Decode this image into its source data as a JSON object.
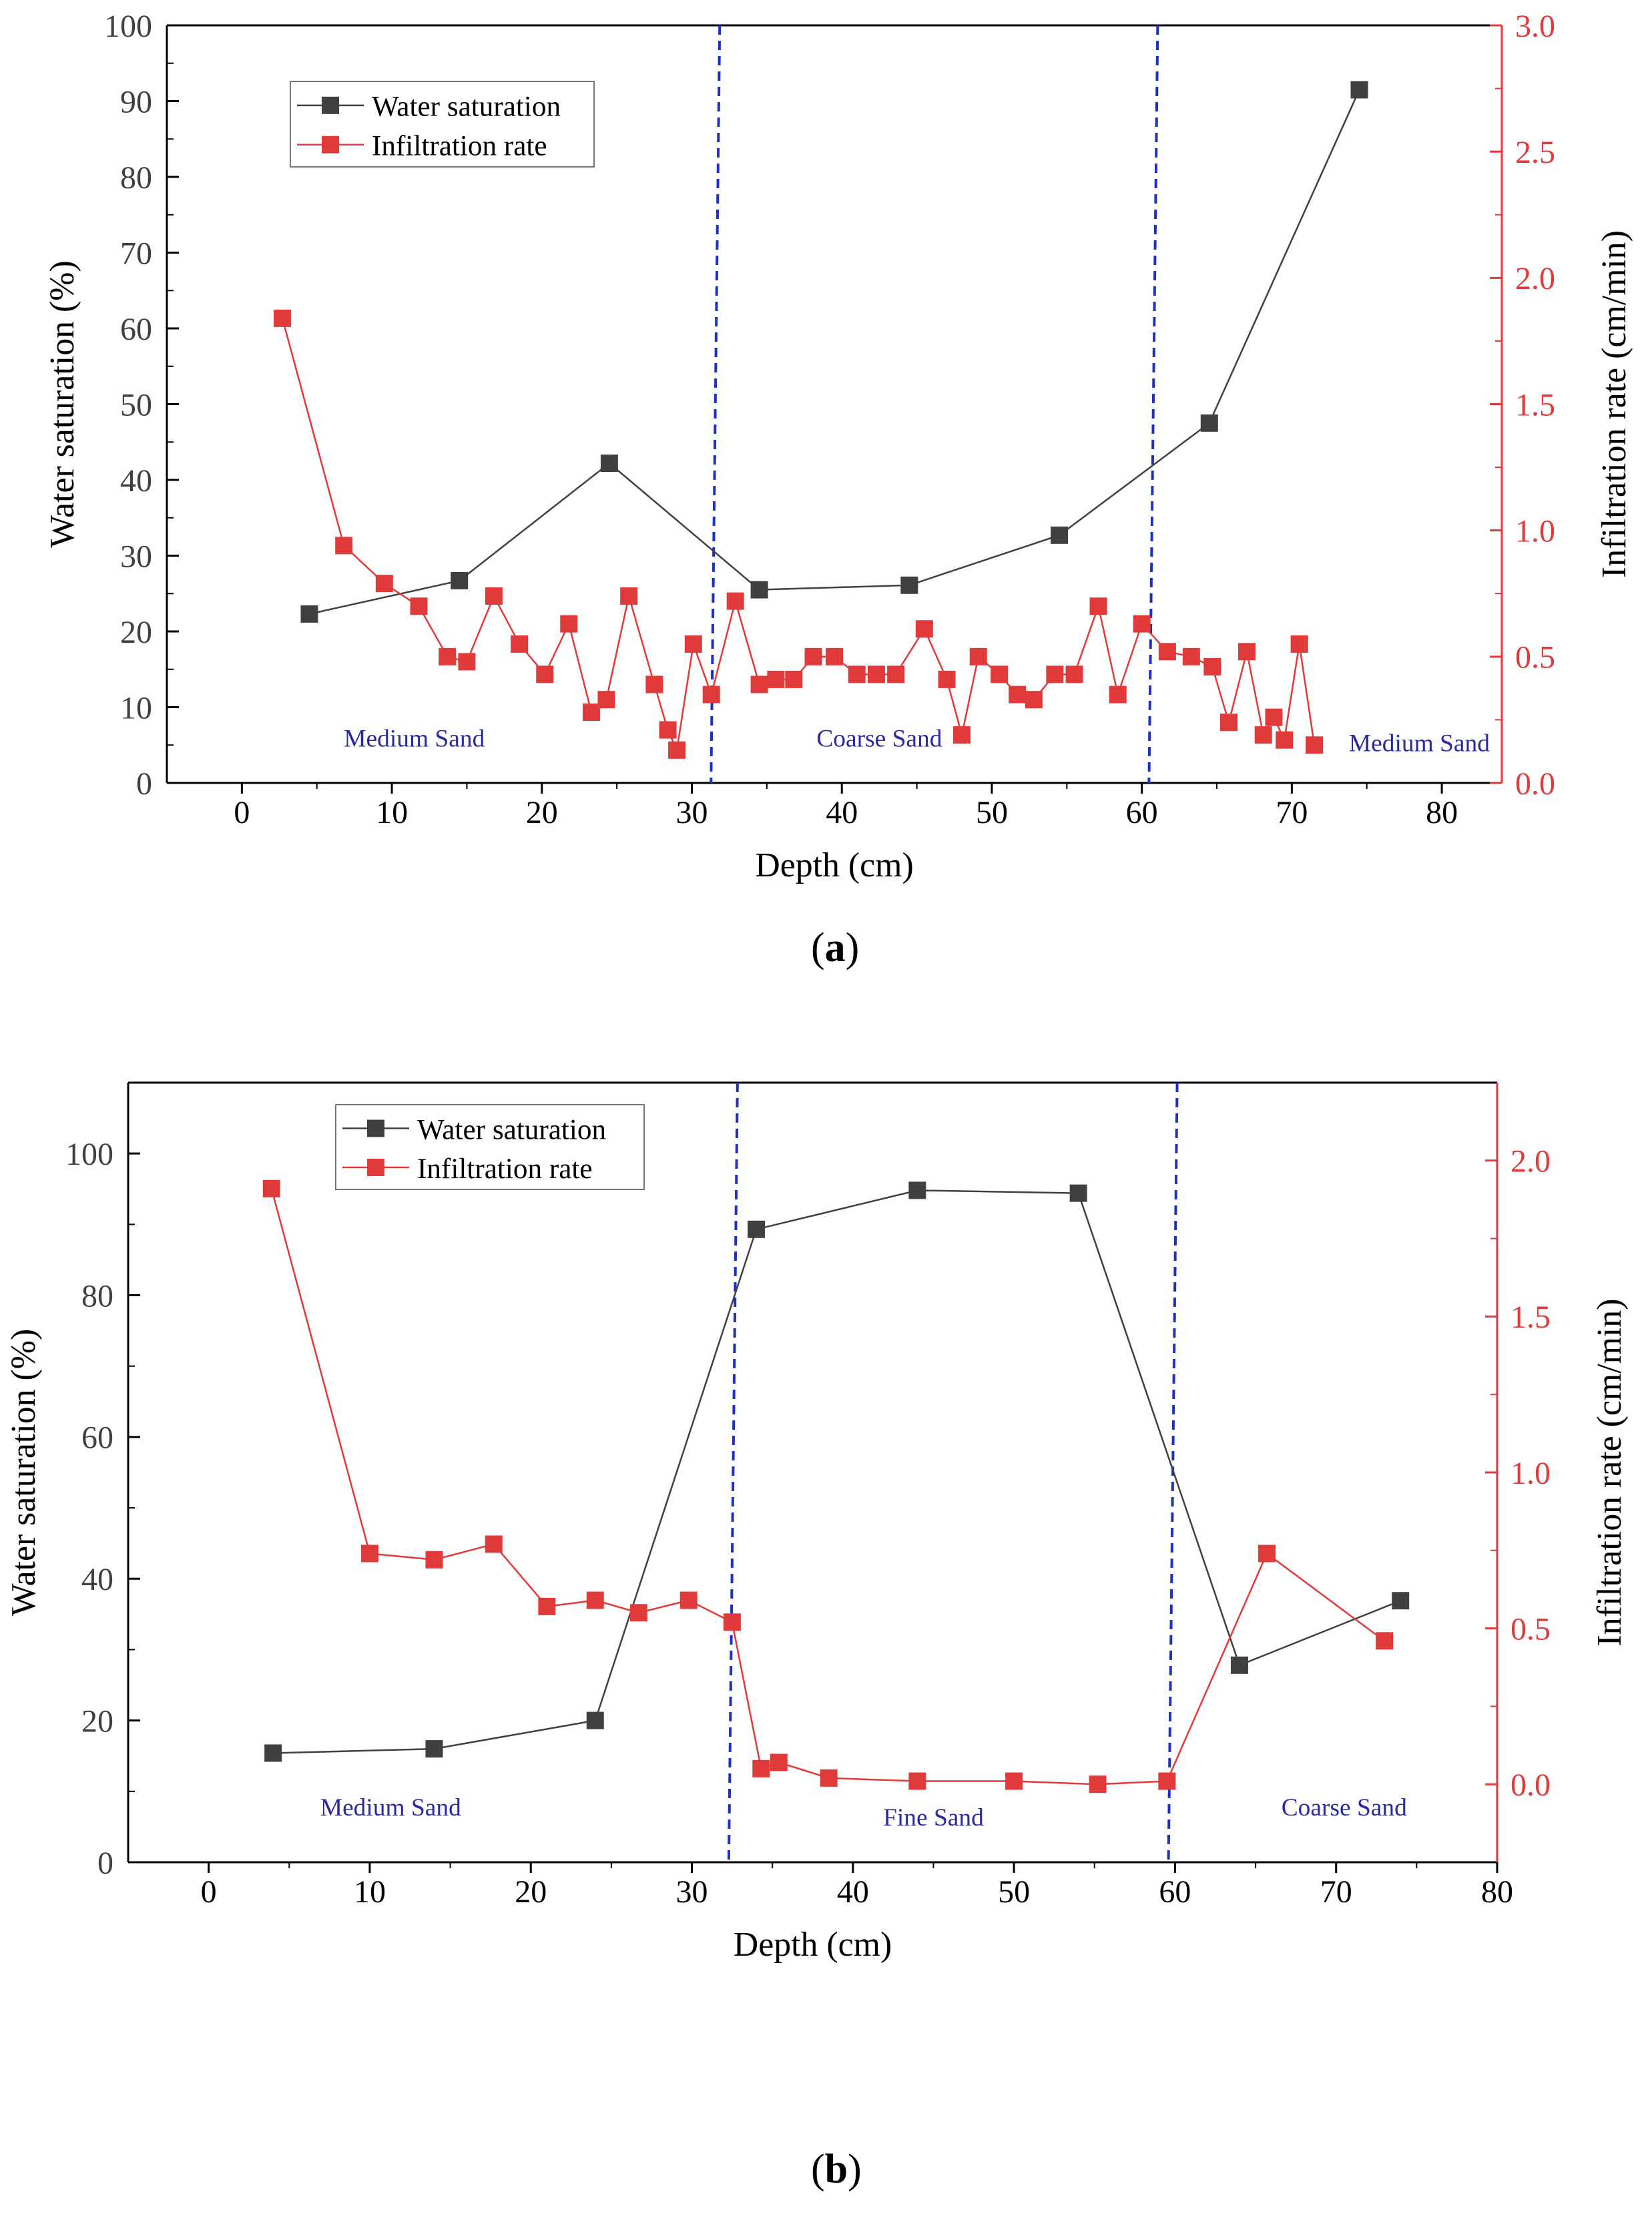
{
  "chart_data": [
    {
      "type": "line",
      "panel_label": "a",
      "xlabel": "Depth (cm)",
      "ylabel": "Water saturation (%)",
      "y2label": "Infiltration rate (cm/min)",
      "xlim": [
        -5,
        84
      ],
      "ylim": [
        0,
        100
      ],
      "y2lim": [
        0,
        3.0
      ],
      "xticks": [
        0,
        10,
        20,
        30,
        40,
        50,
        60,
        70,
        80
      ],
      "yticks": [
        0,
        10,
        20,
        30,
        40,
        50,
        60,
        70,
        80,
        90,
        100
      ],
      "y2ticks": [
        0.0,
        0.5,
        1.0,
        1.5,
        2.0,
        2.5,
        3.0
      ],
      "ytick_labels": [
        "0",
        "10",
        "20",
        "30",
        "40",
        "50",
        "60",
        "70",
        "80",
        "90",
        "100"
      ],
      "y2tick_labels": [
        "0.0",
        "0.5",
        "1.0",
        "1.5",
        "2.0",
        "2.5",
        "3.0"
      ],
      "xtick_labels": [
        "0",
        "10",
        "20",
        "30",
        "40",
        "50",
        "60",
        "70",
        "80"
      ],
      "boundaries": [
        31.5,
        60.7
      ],
      "zones": [
        {
          "label": "Medium Sand",
          "x": 11.5,
          "y": 4.8
        },
        {
          "label": "Coarse Sand",
          "x": 42.5,
          "y": 4.8
        },
        {
          "label": "Medium Sand",
          "x": 78.5,
          "y": 4.2
        }
      ],
      "legend": {
        "position": "top-left",
        "entries": [
          "Water saturation",
          "Infiltration rate"
        ]
      },
      "series": [
        {
          "name": "Water saturation",
          "axis": "left",
          "color": "#404040",
          "x": [
            4.5,
            14.5,
            24.5,
            34.5,
            44.5,
            54.5,
            64.5,
            74.5
          ],
          "y": [
            22.3,
            26.7,
            42.2,
            25.5,
            26.1,
            32.7,
            47.5,
            91.5
          ]
        },
        {
          "name": "Infiltration rate",
          "axis": "right",
          "color": "#e03a3a",
          "x": [
            2.7,
            6.8,
            9.5,
            11.8,
            13.7,
            15.0,
            16.8,
            18.5,
            20.2,
            21.8,
            23.3,
            24.3,
            25.8,
            27.5,
            28.4,
            29.0,
            30.1,
            31.3,
            32.9,
            34.5,
            35.6,
            36.8,
            38.1,
            39.5,
            41.0,
            42.3,
            43.6,
            45.5,
            47.0,
            48.0,
            49.1,
            50.5,
            51.7,
            52.8,
            54.2,
            55.5,
            57.1,
            58.4,
            60.0,
            61.7,
            63.3,
            64.7,
            65.8,
            67.0,
            68.1,
            68.8,
            69.5,
            70.5,
            71.5
          ],
          "y": [
            1.84,
            0.94,
            0.79,
            0.7,
            0.5,
            0.48,
            0.74,
            0.55,
            0.43,
            0.63,
            0.28,
            0.33,
            0.74,
            0.39,
            0.21,
            0.13,
            0.55,
            0.35,
            0.72,
            0.39,
            0.41,
            0.41,
            0.5,
            0.5,
            0.43,
            0.43,
            0.43,
            0.61,
            0.41,
            0.19,
            0.5,
            0.43,
            0.35,
            0.33,
            0.43,
            0.43,
            0.7,
            0.35,
            0.63,
            0.52,
            0.5,
            0.46,
            0.24,
            0.52,
            0.19,
            0.26,
            0.17,
            0.55,
            0.15
          ]
        }
      ]
    },
    {
      "type": "line",
      "panel_label": "b",
      "xlabel": "Depth (cm)",
      "ylabel": "Water saturation (%)",
      "y2label": "Infiltration rate (cm/min)",
      "xlim": [
        -5,
        80
      ],
      "ylim": [
        0,
        110
      ],
      "y2lim": [
        -0.25,
        2.25
      ],
      "xticks": [
        0,
        10,
        20,
        30,
        40,
        50,
        60,
        70,
        80
      ],
      "yticks": [
        0,
        20,
        40,
        60,
        80,
        100
      ],
      "y2ticks": [
        0.0,
        0.5,
        1.0,
        1.5,
        2.0
      ],
      "ytick_labels": [
        "0",
        "20",
        "40",
        "60",
        "80",
        "100"
      ],
      "y2tick_labels": [
        "0.0",
        "0.5",
        "1.0",
        "1.5",
        "2.0"
      ],
      "xtick_labels": [
        "0",
        "10",
        "20",
        "30",
        "40",
        "50",
        "60",
        "70",
        "80"
      ],
      "boundaries": [
        32.5,
        59.8
      ],
      "zones": [
        {
          "label": "Medium Sand",
          "x": 11.3,
          "y": 6.6
        },
        {
          "label": "Fine Sand",
          "x": 45.0,
          "y": 5.2
        },
        {
          "label": "Coarse Sand",
          "x": 70.5,
          "y": 6.6
        }
      ],
      "legend": {
        "position": "top-left",
        "entries": [
          "Water saturation",
          "Infiltration rate"
        ]
      },
      "series": [
        {
          "name": "Water saturation",
          "axis": "left",
          "color": "#404040",
          "x": [
            4,
            14,
            24,
            34,
            44,
            54,
            64,
            74
          ],
          "y": [
            15.4,
            16.0,
            20.0,
            89.3,
            94.8,
            94.4,
            27.8,
            36.9
          ]
        },
        {
          "name": "Infiltration rate",
          "axis": "right",
          "color": "#e03a3a",
          "x": [
            3.9,
            10.0,
            14.0,
            17.7,
            21.0,
            24.0,
            26.7,
            29.8,
            32.5,
            34.3,
            35.4,
            38.5,
            44.0,
            50.0,
            55.2,
            59.5,
            65.7,
            73.0
          ],
          "y": [
            1.91,
            0.74,
            0.72,
            0.77,
            0.57,
            0.59,
            0.55,
            0.59,
            0.52,
            0.05,
            0.07,
            0.02,
            0.01,
            0.01,
            0.0,
            0.01,
            0.74,
            0.46
          ]
        }
      ]
    }
  ]
}
